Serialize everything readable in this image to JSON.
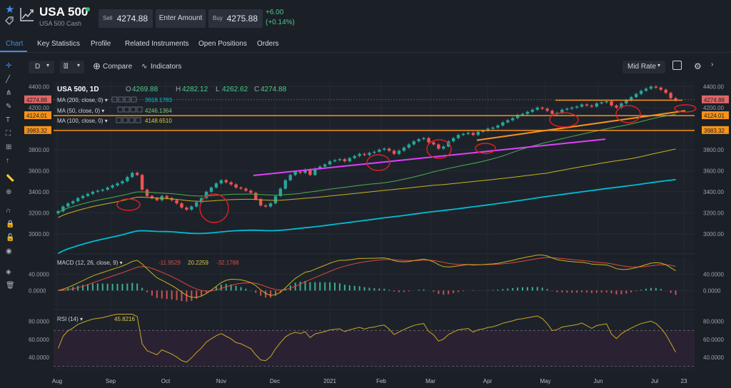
{
  "header": {
    "symbol": "USA 500",
    "subtitle": "USA 500 Cash",
    "sell_label": "Sell",
    "sell_price": "4274.88",
    "enter_amount": "Enter Amount",
    "buy_label": "Buy",
    "buy_price": "4275.88",
    "change_abs": "+6.00",
    "change_pct": "(+0.14%)",
    "status_color": "#2fbf71"
  },
  "tabs": [
    "Chart",
    "Key Statistics",
    "Profile",
    "Related Instruments",
    "Open Positions",
    "Orders"
  ],
  "toolbar": {
    "interval": "D",
    "compare": "Compare",
    "indicators": "Indicators",
    "price_source": "Mid Rate"
  },
  "left_tools": [
    "crosshair-icon",
    "trend-line-icon",
    "fib-icon",
    "brush-icon",
    "text-icon",
    "pattern-icon",
    "projection-icon",
    "arrow-up-icon",
    "ruler-icon",
    "zoom-in-icon",
    "magnet-icon",
    "lock-icon",
    "unlock-icon",
    "eye-icon",
    "layers-icon",
    "trash-icon"
  ],
  "legend": {
    "title": "USA 500, 1D",
    "o_label": "O",
    "o": "4269.88",
    "h_label": "H",
    "h": "4282.12",
    "l_label": "L",
    "l": "4262.62",
    "c_label": "C",
    "c": "4274.88",
    "ma200_label": "MA (200, close, 0)",
    "ma200": "3918.1783",
    "ma50_label": "MA (50, close, 0)",
    "ma50": "4246.1364",
    "ma100_label": "MA (100, close, 0)",
    "ma100": "4148.6510",
    "macd_label": "MACD (12, 26, close, 9)",
    "macd_a": "-11.9529",
    "macd_b": "20.2259",
    "macd_c": "-32.1788",
    "rsi_label": "RSI (14)",
    "rsi": "45.8216"
  },
  "price_tags": {
    "current": "4274.88",
    "level1": "4124.01",
    "level2": "3983.32"
  },
  "axis": {
    "price_ticks": [
      "4400.00",
      "4200.00",
      "4000.00",
      "3800.00",
      "3600.00",
      "3400.00",
      "3200.00",
      "3000.00"
    ],
    "macd_ticks": [
      "40.0000",
      "0.0000"
    ],
    "rsi_ticks": [
      "80.0000",
      "60.0000",
      "40.0000"
    ],
    "months": [
      "Aug",
      "Sep",
      "Oct",
      "Nov",
      "Dec",
      "2021",
      "Feb",
      "Mar",
      "Apr",
      "May",
      "Jun",
      "Jul",
      "23"
    ]
  },
  "colors": {
    "up": "#26a69a",
    "down": "#ef5350",
    "ma200": "#00bcd4",
    "ma50": "#4caf50",
    "ma100": "#c8b31e",
    "level": "#f7931a",
    "support": "#e040fb",
    "annot": "#e02020",
    "macd": "#c8b31e",
    "signal": "#e0463c",
    "rsi": "#c8a823"
  },
  "chart_data": {
    "type": "candlestick",
    "close_series": [
      [
        3215,
        3260,
        3290,
        3310,
        3340,
        3360,
        3380,
        3400,
        3410,
        3420,
        3440,
        3460,
        3480,
        3500,
        3540,
        3580,
        3560,
        3420,
        3360,
        3340,
        3320,
        3360,
        3340,
        3320,
        3290,
        3250,
        3230,
        3260,
        3300,
        3340,
        3400,
        3440,
        3480,
        3510,
        3490,
        3470,
        3440,
        3430,
        3410,
        3390,
        3330,
        3270,
        3260,
        3290,
        3360,
        3430,
        3510,
        3560,
        3590,
        3580,
        3610,
        3560,
        3620,
        3640,
        3660,
        3690,
        3700,
        3710,
        3690,
        3720,
        3740,
        3760,
        3750,
        3770,
        3780,
        3800,
        3810,
        3790,
        3760,
        3790,
        3820,
        3850,
        3880,
        3900,
        3910,
        3870,
        3850,
        3810,
        3830,
        3880,
        3910,
        3940,
        3950,
        3960,
        3940,
        3970,
        3980,
        4000,
        4010,
        4030,
        4060,
        4080,
        4100,
        4130,
        4140,
        4160,
        4180,
        4200,
        4190,
        4170,
        4140,
        4150,
        4180,
        4190,
        4200,
        4210,
        4230,
        4220,
        4210,
        4240,
        4250,
        4260,
        4220,
        4200,
        4240,
        4270,
        4300,
        4330,
        4360,
        4380,
        4400,
        4390,
        4370,
        4340,
        4290,
        4270
      ]
    ],
    "y_range": [
      2850,
      4450
    ],
    "levels": [
      4274.88,
      4124.01,
      3983.32
    ],
    "ma": {
      "MA 200": 3918.1783,
      "MA 50": 4246.1364,
      "MA 100": 4148.651
    },
    "macd_range": [
      -40,
      80
    ],
    "rsi_range": [
      25,
      90
    ],
    "rsi_last": 45.8216
  }
}
